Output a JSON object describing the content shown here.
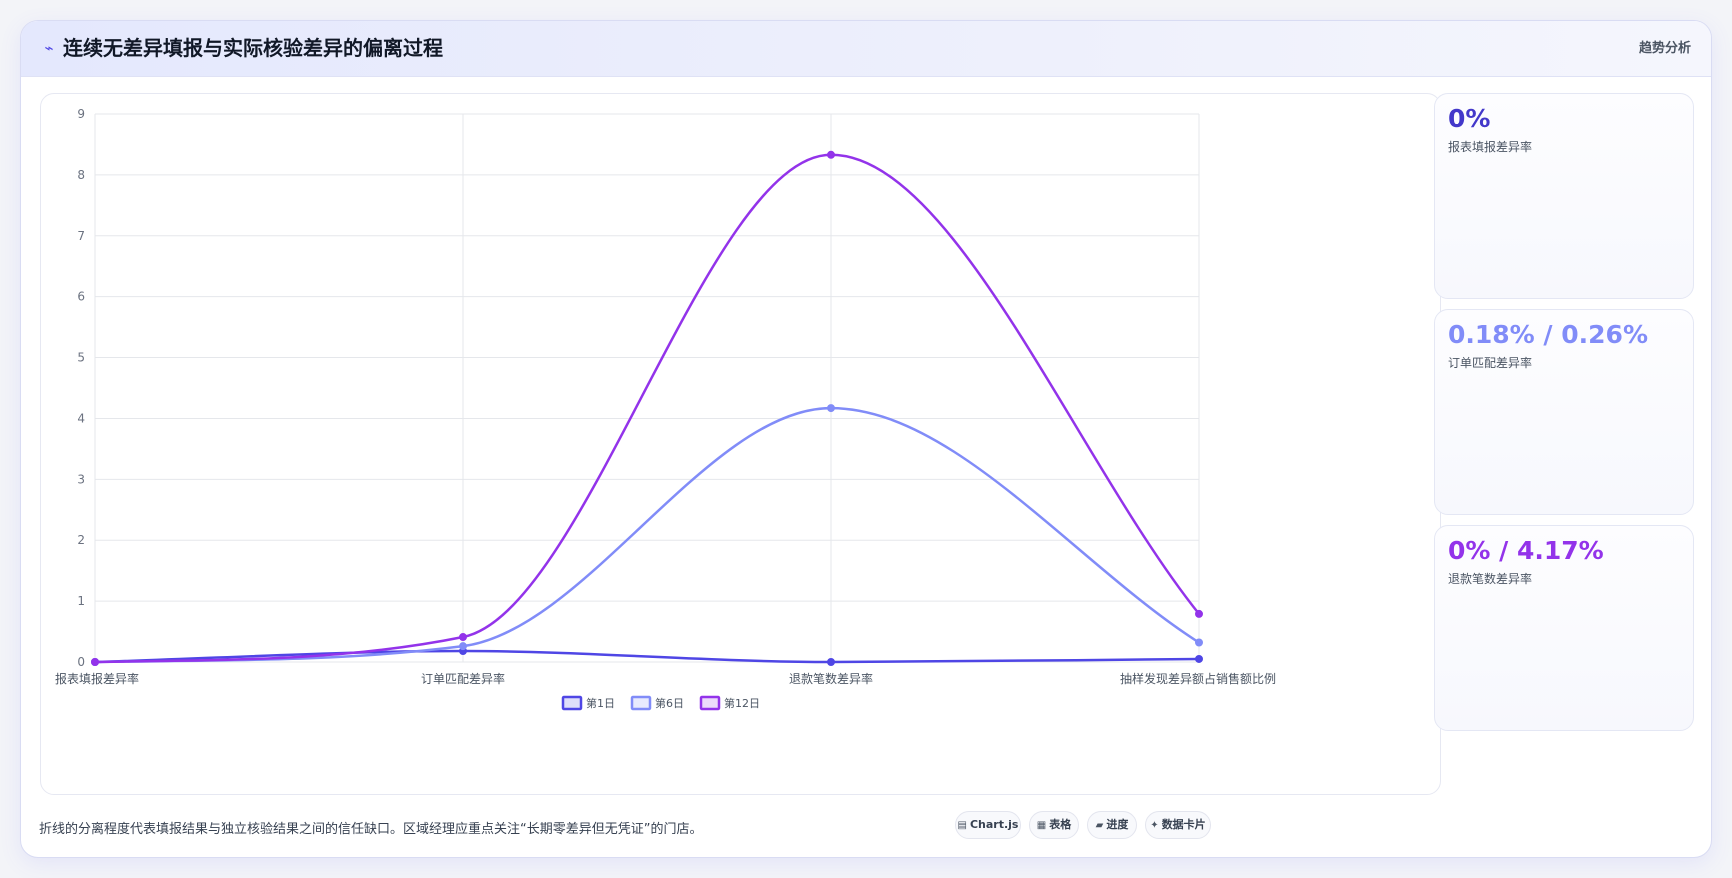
{
  "header": {
    "icon": "trend-line-icon",
    "title": "连续无差异填报与实际核验差异的偏离过程",
    "trend_label": "趋势分析"
  },
  "chart_data": {
    "type": "line",
    "categories": [
      "报表填报差异率",
      "订单匹配差异率",
      "退款笔数差异率",
      "抽样发现差异额占销售额比例"
    ],
    "series": [
      {
        "name": "第1日",
        "values": [
          0,
          0.18,
          0,
          0.05
        ],
        "color": "#4f46e5"
      },
      {
        "name": "第6日",
        "values": [
          0,
          0.26,
          4.17,
          0.32
        ],
        "color": "#818cf8"
      },
      {
        "name": "第12日",
        "values": [
          0,
          0.41,
          8.33,
          0.79
        ],
        "color": "#9333ea"
      }
    ],
    "ylim": [
      0,
      9
    ],
    "yticks": [
      0,
      1,
      2,
      3,
      4,
      5,
      6,
      7,
      8,
      9
    ],
    "grid": true,
    "legend": "bottom",
    "smooth": true
  },
  "stats": [
    {
      "value": "0%",
      "label": "报表填报差异率",
      "color": "#4338ca"
    },
    {
      "value": "0.18% / 0.26%",
      "label": "订单匹配差异率",
      "color": "#818cf8"
    },
    {
      "value": "0% / 4.17%",
      "label": "退款笔数差异率",
      "color": "#9333ea"
    }
  ],
  "footer": {
    "note": "折线的分离程度代表填报结果与独立核验结果之间的信任缺口。区域经理应重点关注“长期零差异但无凭证”的门店。",
    "buttons": [
      {
        "icon": "chart-icon",
        "glyph": "▤",
        "label": "Chart.js"
      },
      {
        "icon": "table-icon",
        "glyph": "▦",
        "label": "表格"
      },
      {
        "icon": "progress-icon",
        "glyph": "▰",
        "label": "进度"
      },
      {
        "icon": "card-icon",
        "glyph": "✦",
        "label": "数据卡片"
      }
    ]
  }
}
